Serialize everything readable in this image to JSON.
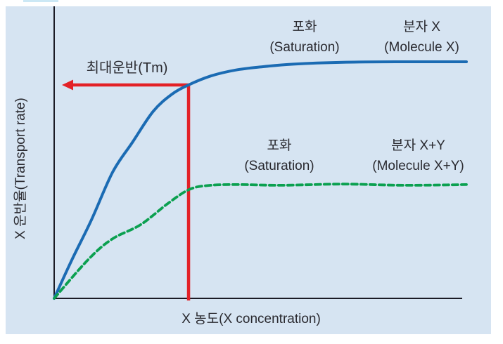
{
  "figure": {
    "tm_marker_label": "최대운반(Tm)",
    "x_axis_label": "X 농도(X concentration)",
    "y_axis_label": "X 운반율(Transport rate)",
    "molecule_x": {
      "saturation_line1": "포화",
      "saturation_line2": "(Saturation)",
      "name_line1": "분자 X",
      "name_line2": "(Molecule X)"
    },
    "molecule_xy": {
      "saturation_line1": "포화",
      "saturation_line2": "(Saturation)",
      "name_line1": "분자 X+Y",
      "name_line2": "(Molecule X+Y)"
    }
  },
  "colors": {
    "panel_background": "#d6e4f2",
    "molecule_x_line": "#1b6bb3",
    "molecule_xy_line": "#0ba050",
    "tm_marker": "#e32127",
    "axis": "#1b1b25",
    "text": "#2a2a30"
  },
  "chart_data": {
    "type": "line",
    "title": "",
    "xlabel": "X 농도(X concentration)",
    "ylabel": "X 운반율(Transport rate)",
    "axis_ticks": "none",
    "x_range_normalized": [
      0,
      1
    ],
    "y_range_normalized": [
      0,
      1
    ],
    "legend_position": "inline annotations above curves",
    "series": [
      {
        "name": "분자 X (Molecule X)",
        "annotation": "포화 (Saturation)",
        "line_style": "solid",
        "color": "#1b6bb3",
        "saturation_level": 1.0,
        "points": [
          [
            0,
            0
          ],
          [
            0.043,
            0.163
          ],
          [
            0.09,
            0.33
          ],
          [
            0.142,
            0.534
          ],
          [
            0.19,
            0.66
          ],
          [
            0.24,
            0.79
          ],
          [
            0.285,
            0.862
          ],
          [
            0.326,
            0.902
          ],
          [
            0.38,
            0.94
          ],
          [
            0.44,
            0.965
          ],
          [
            0.5,
            0.978
          ],
          [
            0.58,
            0.99
          ],
          [
            0.7,
            0.998
          ],
          [
            0.85,
            1.0
          ],
          [
            1.0,
            1.0
          ]
        ]
      },
      {
        "name": "분자 X+Y (Molecule X+Y)",
        "annotation": "포화 (Saturation)",
        "line_style": "dashed",
        "color": "#0ba050",
        "saturation_level": 0.48,
        "points": [
          [
            0,
            0
          ],
          [
            0.082,
            0.163
          ],
          [
            0.14,
            0.25
          ],
          [
            0.21,
            0.312
          ],
          [
            0.278,
            0.404
          ],
          [
            0.33,
            0.462
          ],
          [
            0.38,
            0.478
          ],
          [
            0.45,
            0.481
          ],
          [
            0.55,
            0.478
          ],
          [
            0.7,
            0.483
          ],
          [
            0.85,
            0.478
          ],
          [
            1.0,
            0.481
          ]
        ]
      }
    ],
    "tm_marker": {
      "label": "최대운반(Tm)",
      "x": 0.326,
      "y": 0.902,
      "color": "#e32127"
    }
  }
}
